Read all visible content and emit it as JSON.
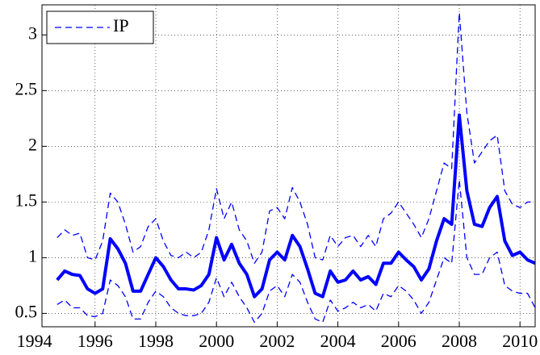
{
  "chart_data": {
    "type": "line",
    "x": [
      1994.75,
      1995,
      1995.25,
      1995.5,
      1995.75,
      1996,
      1996.25,
      1996.5,
      1996.75,
      1997,
      1997.25,
      1997.5,
      1997.75,
      1998,
      1998.25,
      1998.5,
      1998.75,
      1999,
      1999.25,
      1999.5,
      1999.75,
      2000,
      2000.25,
      2000.5,
      2000.75,
      2001,
      2001.25,
      2001.5,
      2001.75,
      2002,
      2002.25,
      2002.5,
      2002.75,
      2003,
      2003.25,
      2003.5,
      2003.75,
      2004,
      2004.25,
      2004.5,
      2004.75,
      2005,
      2005.25,
      2005.5,
      2005.75,
      2006,
      2006.25,
      2006.5,
      2006.75,
      2007,
      2007.25,
      2007.5,
      2007.75,
      2008,
      2008.25,
      2008.5,
      2008.75,
      2009,
      2009.25,
      2009.5,
      2009.75,
      2010,
      2010.25,
      2010.5
    ],
    "series": [
      {
        "name": "IP",
        "color": "#0000ff",
        "style": "dashed",
        "values": [
          1.18,
          1.25,
          1.2,
          1.22,
          1.0,
          0.98,
          1.15,
          1.58,
          1.5,
          1.3,
          1.05,
          1.1,
          1.28,
          1.35,
          1.15,
          1.02,
          1.0,
          1.05,
          1.0,
          1.05,
          1.25,
          1.62,
          1.35,
          1.5,
          1.25,
          1.15,
          0.95,
          1.05,
          1.42,
          1.45,
          1.35,
          1.63,
          1.5,
          1.3,
          1.0,
          0.98,
          1.2,
          1.1,
          1.18,
          1.2,
          1.1,
          1.2,
          1.1,
          1.35,
          1.4,
          1.5,
          1.4,
          1.3,
          1.18,
          1.35,
          1.6,
          1.85,
          1.8,
          3.2,
          2.3,
          1.85,
          1.95,
          2.05,
          2.1,
          1.6,
          1.48,
          1.45,
          1.5,
          1.5
        ]
      },
      {
        "color": "#0000ff",
        "style": "solid",
        "values": [
          0.8,
          0.88,
          0.85,
          0.84,
          0.72,
          0.68,
          0.72,
          1.17,
          1.08,
          0.95,
          0.7,
          0.7,
          0.85,
          1.0,
          0.92,
          0.8,
          0.72,
          0.72,
          0.71,
          0.75,
          0.85,
          1.18,
          0.98,
          1.12,
          0.95,
          0.85,
          0.65,
          0.72,
          0.98,
          1.05,
          0.98,
          1.2,
          1.1,
          0.9,
          0.68,
          0.65,
          0.88,
          0.78,
          0.8,
          0.88,
          0.8,
          0.83,
          0.76,
          0.95,
          0.95,
          1.05,
          0.98,
          0.92,
          0.8,
          0.9,
          1.15,
          1.35,
          1.3,
          2.28,
          1.6,
          1.3,
          1.28,
          1.45,
          1.55,
          1.15,
          1.02,
          1.05,
          0.98,
          0.95
        ]
      },
      {
        "color": "#0000ff",
        "style": "dashed",
        "values": [
          0.58,
          0.62,
          0.55,
          0.55,
          0.48,
          0.47,
          0.5,
          0.8,
          0.75,
          0.65,
          0.45,
          0.45,
          0.6,
          0.7,
          0.65,
          0.55,
          0.5,
          0.48,
          0.48,
          0.5,
          0.6,
          0.82,
          0.65,
          0.78,
          0.65,
          0.55,
          0.42,
          0.5,
          0.7,
          0.75,
          0.65,
          0.85,
          0.78,
          0.6,
          0.45,
          0.42,
          0.62,
          0.52,
          0.55,
          0.6,
          0.55,
          0.58,
          0.52,
          0.68,
          0.65,
          0.75,
          0.7,
          0.62,
          0.5,
          0.6,
          0.8,
          1.0,
          0.95,
          1.7,
          1.0,
          0.85,
          0.85,
          1.0,
          1.05,
          0.75,
          0.7,
          0.68,
          0.68,
          0.55
        ]
      }
    ],
    "xlim": [
      1994.25,
      2010.5
    ],
    "ylim": [
      0.38,
      3.27
    ],
    "xticks": [
      1994,
      1996,
      1998,
      2000,
      2002,
      2004,
      2006,
      2008,
      2010
    ],
    "yticks": [
      0.5,
      1,
      1.5,
      2,
      2.5,
      3
    ],
    "grid": true,
    "legend": "top-left"
  }
}
